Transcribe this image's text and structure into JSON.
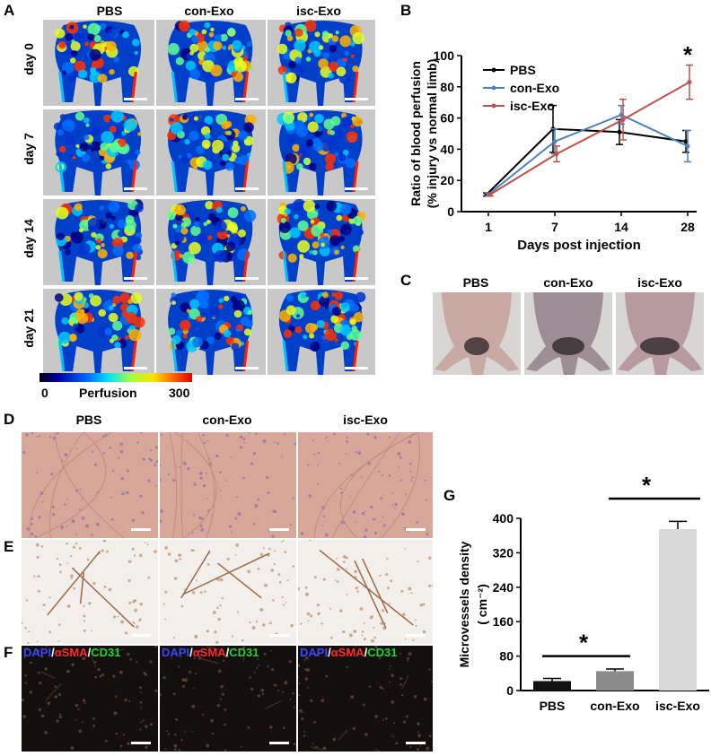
{
  "panels": {
    "A": {
      "letter": "A",
      "columns": [
        "PBS",
        "con-Exo",
        "isc-Exo"
      ],
      "rows": [
        "day 0",
        "day 7",
        "day 14",
        "day 21"
      ],
      "colorbar": {
        "min": "0",
        "label": "Perfusion",
        "max": "300"
      }
    },
    "B": {
      "letter": "B"
    },
    "C": {
      "letter": "C",
      "columns": [
        "PBS",
        "con-Exo",
        "isc-Exo"
      ]
    },
    "D": {
      "letter": "D",
      "columns": [
        "PBS",
        "con-Exo",
        "isc-Exo"
      ]
    },
    "E": {
      "letter": "E"
    },
    "F": {
      "letter": "F",
      "stain": {
        "dapi": "DAPI",
        "sep1": "/",
        "asma": "αSMA",
        "sep2": "/",
        "cd31": "CD31"
      }
    },
    "G": {
      "letter": "G"
    }
  },
  "chart_data": [
    {
      "id": "B",
      "type": "line",
      "ylabel": "Ratio of blood perfusion",
      "ylabel2": "(% injury vs normal limb)",
      "xlabel": "Days post injection",
      "categories": [
        "1",
        "7",
        "14",
        "28"
      ],
      "ylim": [
        0,
        100
      ],
      "yticks": [
        "0",
        "20",
        "40",
        "60",
        "80",
        "100"
      ],
      "legend": "top-left",
      "significance": "*",
      "series": [
        {
          "name": "PBS",
          "color": "#000000",
          "values": [
            11,
            53,
            51,
            45
          ],
          "errors": [
            1,
            15,
            8,
            7
          ]
        },
        {
          "name": "con-Exo",
          "color": "#4f81bd",
          "values": [
            11,
            45,
            62,
            42
          ],
          "errors": [
            1,
            8,
            6,
            10
          ]
        },
        {
          "name": "isc-Exo",
          "color": "#c0504d",
          "values": [
            11,
            37,
            59,
            83
          ],
          "errors": [
            1,
            5,
            13,
            11
          ]
        }
      ]
    },
    {
      "id": "G",
      "type": "bar",
      "ylabel": "Microvessels density",
      "ylabel2": "( cm⁻²)",
      "categories": [
        "PBS",
        "con-Exo",
        "isc-Exo"
      ],
      "values": [
        22,
        45,
        375
      ],
      "errors": [
        6,
        5,
        18
      ],
      "colors": [
        "#111111",
        "#8c8c8c",
        "#d9d9d9"
      ],
      "ylim": [
        0,
        400
      ],
      "yticks": [
        "0",
        "80",
        "160",
        "240",
        "320",
        "400"
      ],
      "significance": [
        "*",
        "*"
      ]
    }
  ]
}
